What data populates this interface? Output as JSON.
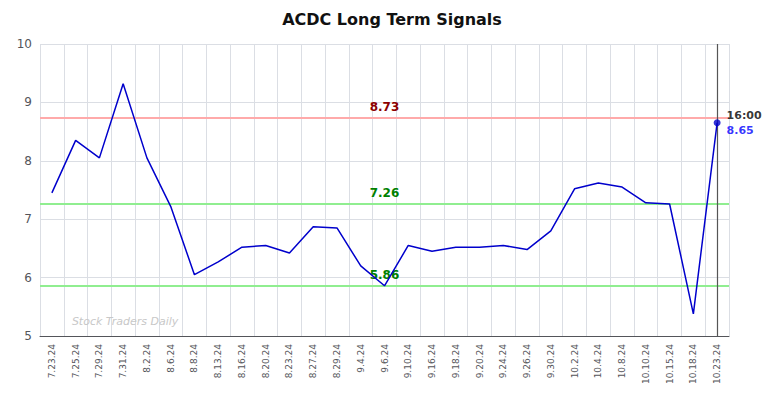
{
  "chart_data": {
    "type": "line",
    "title": "ACDC Long Term Signals",
    "categories": [
      "7.23.24",
      "7.25.24",
      "7.29.24",
      "7.31.24",
      "8.2.24",
      "8.6.24",
      "8.8.24",
      "8.13.24",
      "8.16.24",
      "8.20.24",
      "8.23.24",
      "8.27.24",
      "8.29.24",
      "9.4.24",
      "9.6.24",
      "9.10.24",
      "9.16.24",
      "9.18.24",
      "9.20.24",
      "9.24.24",
      "9.26.24",
      "9.30.24",
      "10.2.24",
      "10.4.24",
      "10.8.24",
      "10.10.24",
      "10.15.24",
      "10.18.24",
      "10.23.24"
    ],
    "values": [
      7.45,
      8.35,
      8.05,
      9.32,
      8.05,
      7.22,
      6.05,
      6.27,
      6.52,
      6.55,
      6.42,
      6.87,
      6.85,
      6.2,
      5.86,
      6.55,
      6.45,
      6.52,
      6.52,
      6.55,
      6.48,
      6.8,
      7.52,
      7.62,
      7.55,
      7.28,
      7.26,
      5.38,
      8.65
    ],
    "color": "#0000cc",
    "ylim": [
      5,
      10
    ],
    "yticks": [
      5,
      6,
      7,
      8,
      9,
      10
    ],
    "grid": true,
    "hlines": [
      {
        "value": 8.73,
        "label": "8.73",
        "color": "#ffaaaa",
        "label_color": "darkred"
      },
      {
        "value": 7.26,
        "label": "7.26",
        "color": "#90ee90",
        "label_color": "green"
      },
      {
        "value": 5.86,
        "label": "5.86",
        "color": "#90ee90",
        "label_color": "green"
      }
    ],
    "vline": {
      "category": "10.23.24",
      "color": "#555555"
    },
    "last_point": {
      "category": "10.23.24",
      "value": 8.65,
      "color": "#0000cc",
      "marker": "circle",
      "time_label": "16:00",
      "value_label": "8.65"
    },
    "watermark": "Stock Traders Daily"
  }
}
